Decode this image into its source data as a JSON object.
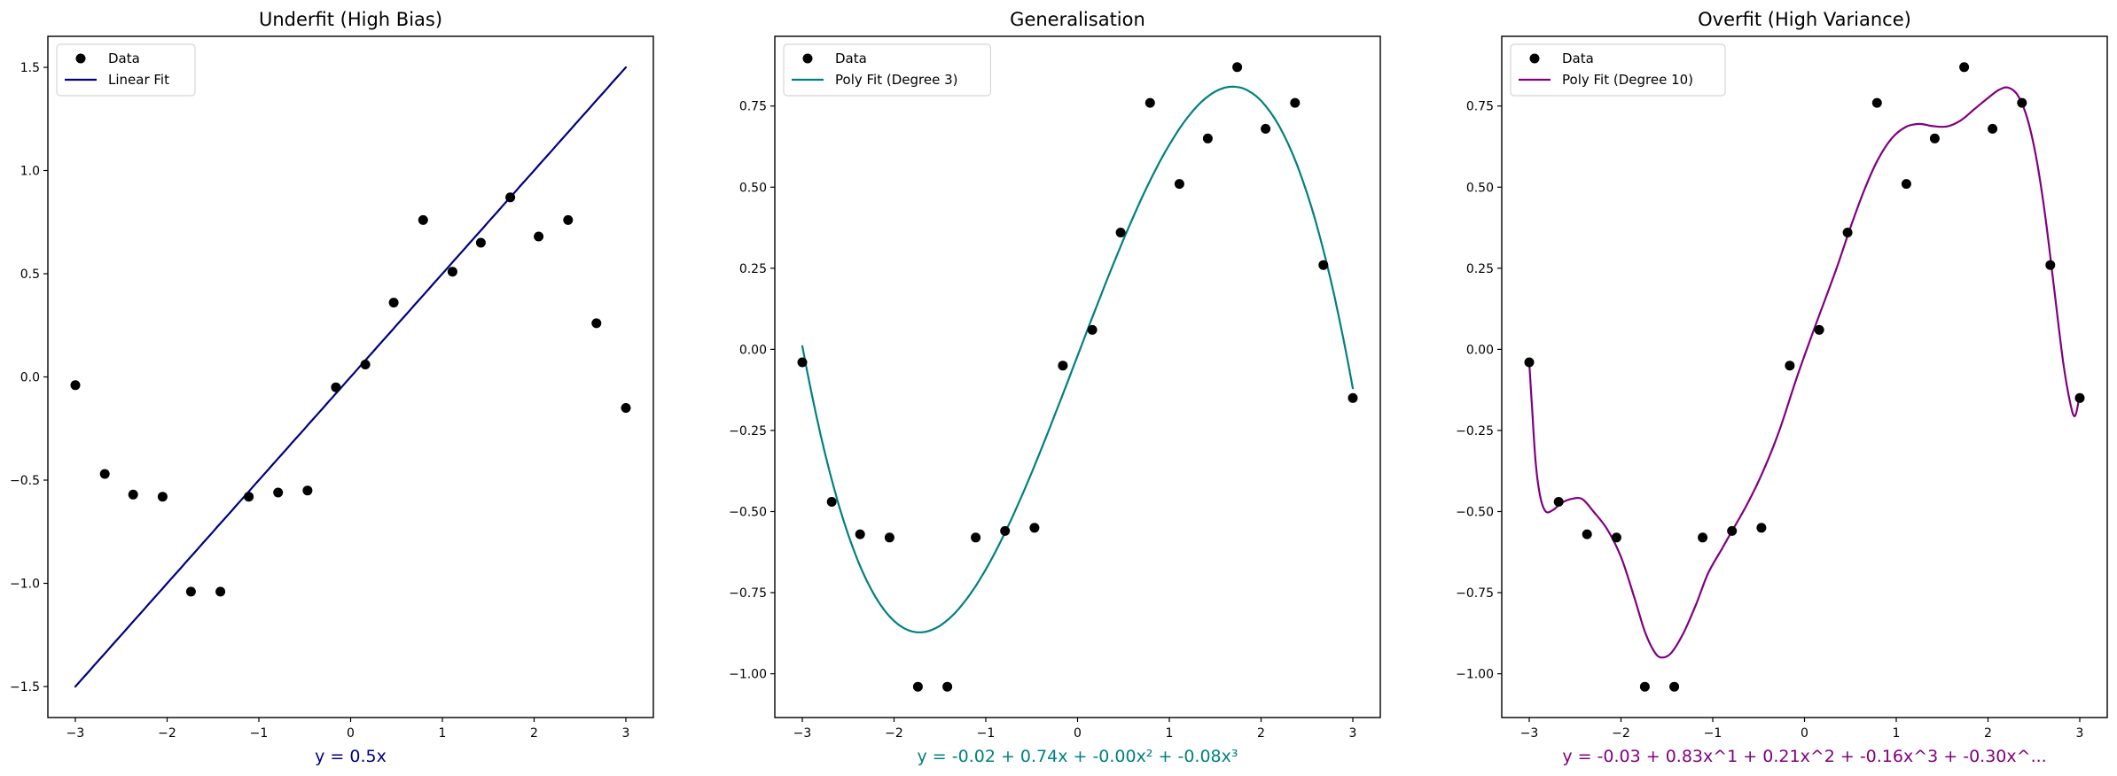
{
  "figure": {
    "background": "#ffffff",
    "text_color": "#000000",
    "spine_color": "#000000",
    "legend_border_color": "#d5d5d5",
    "legend_bg_color": "#ffffff"
  },
  "chart_data": [
    {
      "type": "scatter",
      "title": "Underfit (High Bias)",
      "equation": "y = 0.5x",
      "accent_color": "#000080",
      "point_color": "#000000",
      "legend": {
        "position": "upper-left",
        "entries": [
          {
            "label": "Data",
            "marker": "dot",
            "color": "#000000"
          },
          {
            "label": "Linear Fit",
            "marker": "line",
            "color": "#000080"
          }
        ]
      },
      "xlim": [
        -3.3,
        3.3
      ],
      "ylim": [
        -1.65,
        1.65
      ],
      "xticks": {
        "values": [
          -3,
          -2,
          -1,
          0,
          1,
          2,
          3
        ],
        "labels": [
          "−3",
          "−2",
          "−1",
          "0",
          "1",
          "2",
          "3"
        ]
      },
      "yticks": {
        "values": [
          1.5,
          1.0,
          0.5,
          0.0,
          -0.5,
          -1.0,
          -1.5
        ],
        "labels": [
          "1.5",
          "1.0",
          "0.5",
          "0.0",
          "−0.5",
          "−1.0",
          "−1.5"
        ]
      },
      "scatter": {
        "x": [
          -3.0,
          -2.68,
          -2.37,
          -2.05,
          -1.74,
          -1.42,
          -1.11,
          -0.79,
          -0.47,
          -0.16,
          0.16,
          0.47,
          0.79,
          1.11,
          1.42,
          1.74,
          2.05,
          2.37,
          2.68,
          3.0
        ],
        "y": [
          -0.04,
          -0.47,
          -0.57,
          -0.58,
          -1.04,
          -1.04,
          -0.58,
          -0.56,
          -0.55,
          -0.05,
          0.06,
          0.36,
          0.76,
          0.51,
          0.65,
          0.87,
          0.68,
          0.76,
          0.26,
          -0.15
        ]
      },
      "fit": {
        "kind": "poly",
        "coeffs": [
          0,
          0.5
        ],
        "x_range": [
          -3,
          3
        ]
      }
    },
    {
      "type": "scatter",
      "title": "Generalisation",
      "equation": "y = -0.02 + 0.74x + -0.00x² + -0.08x³",
      "accent_color": "#008080",
      "point_color": "#000000",
      "legend": {
        "position": "upper-left",
        "entries": [
          {
            "label": "Data",
            "marker": "dot",
            "color": "#000000"
          },
          {
            "label": "Poly Fit (Degree 3)",
            "marker": "line",
            "color": "#008080"
          }
        ]
      },
      "xlim": [
        -3.3,
        3.3
      ],
      "ylim": [
        -1.135,
        0.965
      ],
      "xticks": {
        "values": [
          -3,
          -2,
          -1,
          0,
          1,
          2,
          3
        ],
        "labels": [
          "−3",
          "−2",
          "−1",
          "0",
          "1",
          "2",
          "3"
        ]
      },
      "yticks": {
        "values": [
          0.75,
          0.5,
          0.25,
          0.0,
          -0.25,
          -0.5,
          -0.75,
          -1.0
        ],
        "labels": [
          "0.75",
          "0.50",
          "0.25",
          "0.00",
          "−0.25",
          "−0.50",
          "−0.75",
          "−1.00"
        ]
      },
      "scatter": {
        "x": [
          -3.0,
          -2.68,
          -2.37,
          -2.05,
          -1.74,
          -1.42,
          -1.11,
          -0.79,
          -0.47,
          -0.16,
          0.16,
          0.47,
          0.79,
          1.11,
          1.42,
          1.74,
          2.05,
          2.37,
          2.68,
          3.0
        ],
        "y": [
          -0.04,
          -0.47,
          -0.57,
          -0.58,
          -1.04,
          -1.04,
          -0.58,
          -0.56,
          -0.55,
          -0.05,
          0.06,
          0.36,
          0.76,
          0.51,
          0.65,
          0.87,
          0.68,
          0.76,
          0.26,
          -0.15
        ]
      },
      "fit": {
        "kind": "poly",
        "coeffs": [
          -0.0199,
          0.7391,
          -0.0039,
          -0.08453
        ],
        "x_range": [
          -3,
          3
        ]
      }
    },
    {
      "type": "scatter",
      "title": "Overfit (High Variance)",
      "equation": "y = -0.03 + 0.83x^1 + 0.21x^2 + -0.16x^3 + -0.30x^...",
      "accent_color": "#800080",
      "point_color": "#000000",
      "legend": {
        "position": "upper-left",
        "entries": [
          {
            "label": "Data",
            "marker": "dot",
            "color": "#000000"
          },
          {
            "label": "Poly Fit (Degree 10)",
            "marker": "line",
            "color": "#800080"
          }
        ]
      },
      "xlim": [
        -3.3,
        3.3
      ],
      "ylim": [
        -1.135,
        0.965
      ],
      "xticks": {
        "values": [
          -3,
          -2,
          -1,
          0,
          1,
          2,
          3
        ],
        "labels": [
          "−3",
          "−2",
          "−1",
          "0",
          "1",
          "2",
          "3"
        ]
      },
      "yticks": {
        "values": [
          0.75,
          0.5,
          0.25,
          0.0,
          -0.25,
          -0.5,
          -0.75,
          -1.0
        ],
        "labels": [
          "0.75",
          "0.50",
          "0.25",
          "0.00",
          "−0.25",
          "−0.50",
          "−0.75",
          "−1.00"
        ]
      },
      "scatter": {
        "x": [
          -3.0,
          -2.68,
          -2.37,
          -2.05,
          -1.74,
          -1.42,
          -1.11,
          -0.79,
          -0.47,
          -0.16,
          0.16,
          0.47,
          0.79,
          1.11,
          1.42,
          1.74,
          2.05,
          2.37,
          2.68,
          3.0
        ],
        "y": [
          -0.04,
          -0.47,
          -0.57,
          -0.58,
          -1.04,
          -1.04,
          -0.58,
          -0.56,
          -0.55,
          -0.05,
          0.06,
          0.36,
          0.76,
          0.51,
          0.65,
          0.87,
          0.68,
          0.76,
          0.26,
          -0.15
        ]
      },
      "fit": {
        "kind": "points",
        "pts": [
          [
            -3.0,
            -0.04
          ],
          [
            -2.97,
            -0.18
          ],
          [
            -2.93,
            -0.35
          ],
          [
            -2.88,
            -0.455
          ],
          [
            -2.82,
            -0.5
          ],
          [
            -2.74,
            -0.495
          ],
          [
            -2.64,
            -0.472
          ],
          [
            -2.52,
            -0.46
          ],
          [
            -2.42,
            -0.462
          ],
          [
            -2.3,
            -0.5
          ],
          [
            -2.15,
            -0.555
          ],
          [
            -2.0,
            -0.64
          ],
          [
            -1.86,
            -0.76
          ],
          [
            -1.74,
            -0.87
          ],
          [
            -1.63,
            -0.935
          ],
          [
            -1.55,
            -0.95
          ],
          [
            -1.45,
            -0.935
          ],
          [
            -1.32,
            -0.875
          ],
          [
            -1.18,
            -0.785
          ],
          [
            -1.05,
            -0.69
          ],
          [
            -0.9,
            -0.615
          ],
          [
            -0.79,
            -0.56
          ],
          [
            -0.62,
            -0.475
          ],
          [
            -0.45,
            -0.375
          ],
          [
            -0.28,
            -0.255
          ],
          [
            -0.1,
            -0.1
          ],
          [
            0.05,
            0.02
          ],
          [
            0.2,
            0.135
          ],
          [
            0.35,
            0.25
          ],
          [
            0.5,
            0.375
          ],
          [
            0.65,
            0.49
          ],
          [
            0.8,
            0.585
          ],
          [
            0.95,
            0.65
          ],
          [
            1.1,
            0.685
          ],
          [
            1.25,
            0.695
          ],
          [
            1.4,
            0.688
          ],
          [
            1.55,
            0.687
          ],
          [
            1.7,
            0.705
          ],
          [
            1.85,
            0.74
          ],
          [
            2.0,
            0.775
          ],
          [
            2.12,
            0.8
          ],
          [
            2.22,
            0.807
          ],
          [
            2.32,
            0.785
          ],
          [
            2.42,
            0.72
          ],
          [
            2.52,
            0.6
          ],
          [
            2.62,
            0.42
          ],
          [
            2.72,
            0.19
          ],
          [
            2.82,
            -0.04
          ],
          [
            2.9,
            -0.17
          ],
          [
            2.95,
            -0.205
          ],
          [
            3.0,
            -0.14
          ]
        ]
      }
    }
  ]
}
